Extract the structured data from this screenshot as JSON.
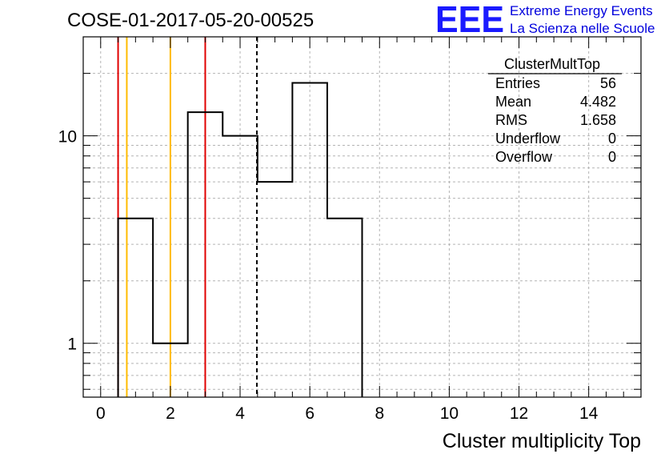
{
  "header": {
    "run_title": "COSE-01-2017-05-20-00525"
  },
  "logo": {
    "mark": "EEE",
    "line1": "Extreme Energy Events",
    "line2": "La Scienza nelle Scuole",
    "color": "#1a1aff"
  },
  "stats": {
    "name": "ClusterMultTop",
    "rows": [
      {
        "label": "Entries",
        "value": "56"
      },
      {
        "label": "Mean",
        "value": "4.482"
      },
      {
        "label": "RMS",
        "value": "1.658"
      },
      {
        "label": "Underflow",
        "value": "0"
      },
      {
        "label": "Overflow",
        "value": "0"
      }
    ]
  },
  "chart_data": {
    "type": "bar",
    "style": "step-histogram",
    "xlabel": "Cluster multiplicity Top",
    "ylabel": "",
    "xlim": [
      -0.5,
      15.5
    ],
    "ylim": [
      0.55,
      30
    ],
    "y_scale": "log",
    "grid": true,
    "x_ticks": [
      0,
      2,
      4,
      6,
      8,
      10,
      12,
      14
    ],
    "y_ticks": [
      1,
      10
    ],
    "bin_width": 1,
    "bins": [
      {
        "x": 1,
        "count": 4
      },
      {
        "x": 2,
        "count": 1
      },
      {
        "x": 3,
        "count": 13
      },
      {
        "x": 4,
        "count": 10
      },
      {
        "x": 5,
        "count": 6
      },
      {
        "x": 6,
        "count": 18
      },
      {
        "x": 7,
        "count": 4
      }
    ],
    "markers": [
      {
        "x": 0.5,
        "color": "#e00000",
        "style": "solid"
      },
      {
        "x": 0.75,
        "color": "#ffbb00",
        "style": "solid"
      },
      {
        "x": 2,
        "color": "#ffbb00",
        "style": "solid"
      },
      {
        "x": 3,
        "color": "#e00000",
        "style": "solid"
      },
      {
        "x": 4.482,
        "color": "#000000",
        "style": "dashed"
      }
    ]
  }
}
